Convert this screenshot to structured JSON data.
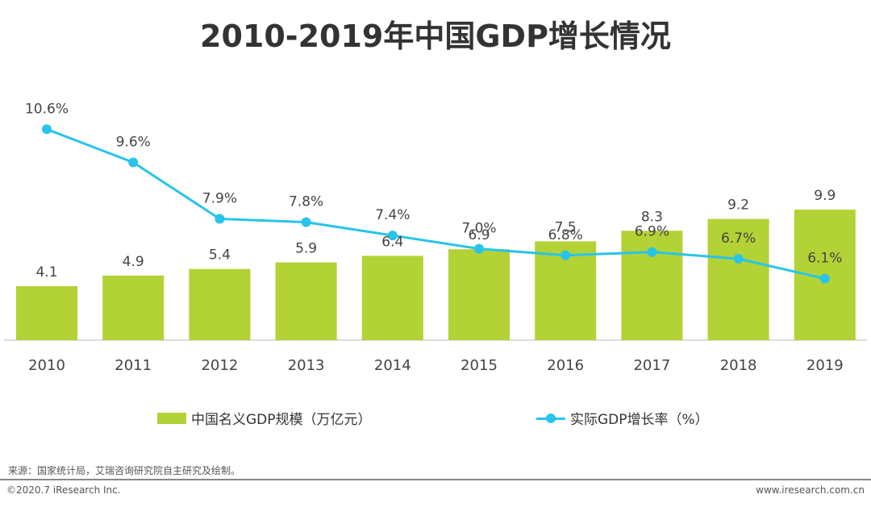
{
  "title": "2010-2019年中国GDP增长情况",
  "chart_data": {
    "type": "bar",
    "categories": [
      "2010",
      "2011",
      "2012",
      "2013",
      "2014",
      "2015",
      "2016",
      "2017",
      "2018",
      "2019"
    ],
    "series": [
      {
        "name": "中国名义GDP规模（万亿元）",
        "type": "bar",
        "values": [
          4.1,
          4.9,
          5.4,
          5.9,
          6.4,
          6.9,
          7.5,
          8.3,
          9.2,
          9.9
        ],
        "labels": [
          "4.1",
          "4.9",
          "5.4",
          "5.9",
          "6.4",
          "6.9",
          "7.5",
          "8.3",
          "9.2",
          "9.9"
        ],
        "color": "#b2d235"
      },
      {
        "name": "实际GDP增长率（%）",
        "type": "line",
        "values": [
          10.6,
          9.6,
          7.9,
          7.8,
          7.4,
          7.0,
          6.8,
          6.9,
          6.7,
          6.1
        ],
        "labels": [
          "10.6%",
          "9.6%",
          "7.9%",
          "7.8%",
          "7.4%",
          "7.0%",
          "6.8%",
          "6.9%",
          "6.7%",
          "6.1%"
        ],
        "color": "#29c4ea"
      }
    ],
    "legend": "bottom"
  },
  "source": "来源：国家统计局，艾瑞咨询研究院自主研究及绘制。",
  "copyright": "©2020.7 iResearch Inc.",
  "website": "www.iresearch.com.cn"
}
